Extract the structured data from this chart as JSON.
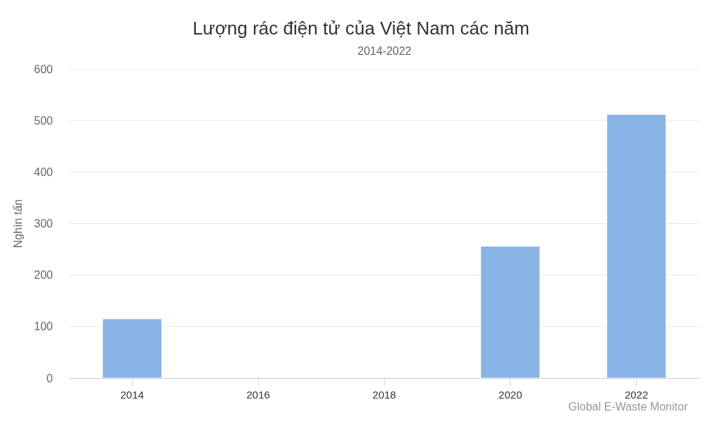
{
  "chart_data": {
    "type": "bar",
    "title": "Lượng rác điện tử của Việt Nam các năm",
    "subtitle": "2014-2022",
    "ylabel": "Nghìn tấn",
    "categories": [
      "2014",
      "2016",
      "2018",
      "2020",
      "2022"
    ],
    "series": [
      {
        "color": "#8ab3e6",
        "values": [
          115,
          null,
          null,
          256,
          512
        ]
      }
    ],
    "ylim": [
      0,
      600
    ],
    "yticks": [
      0,
      100,
      200,
      300,
      400,
      500,
      600
    ],
    "grid": "y",
    "annotations": [
      "Global E-Waste Monitor"
    ]
  }
}
